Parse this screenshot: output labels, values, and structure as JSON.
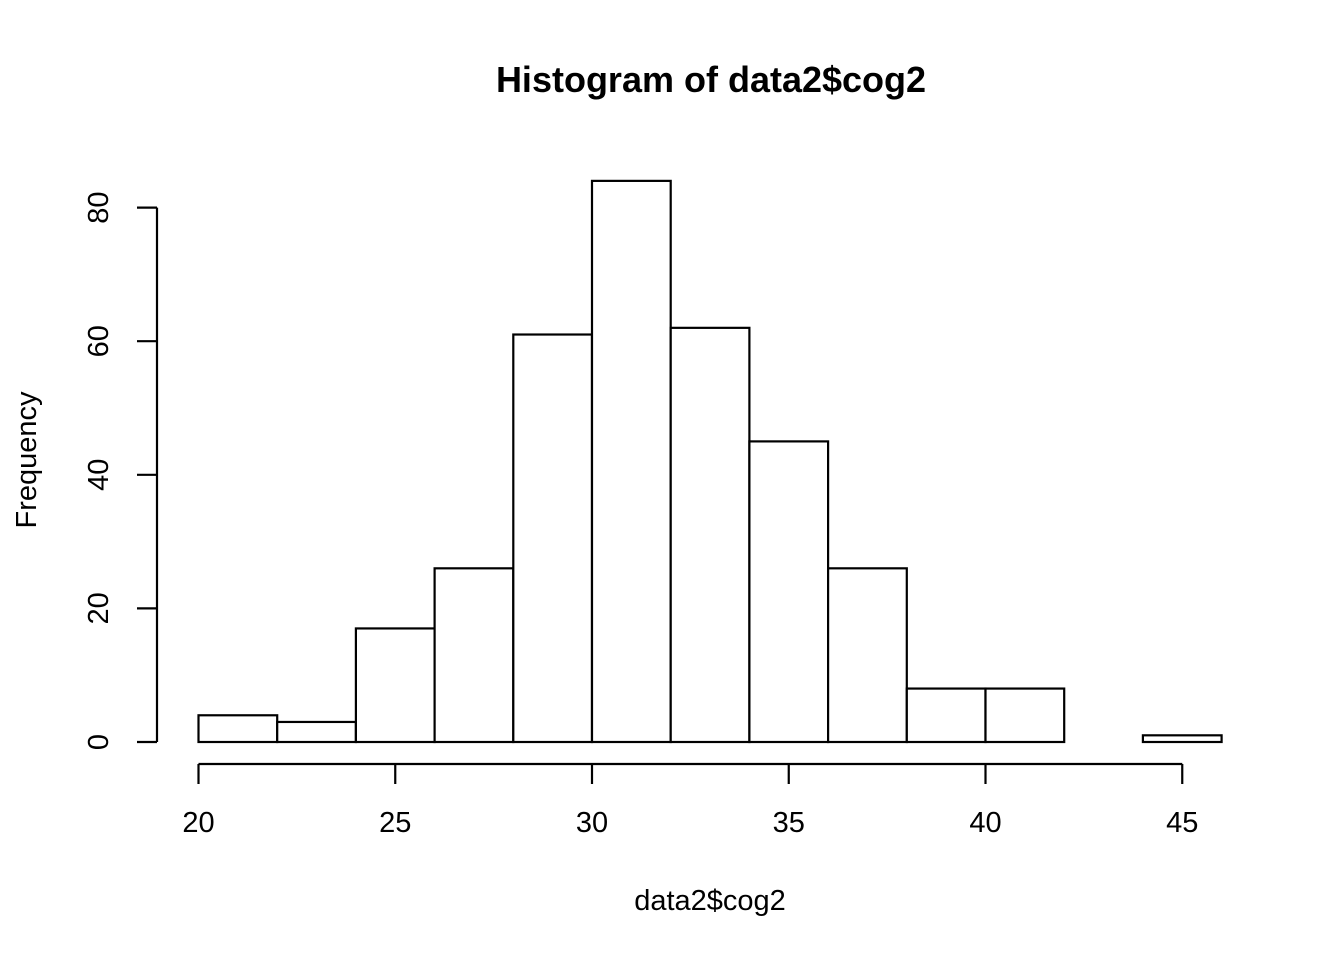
{
  "chart_data": {
    "type": "bar",
    "subtype": "histogram",
    "title": "Histogram of data2$cog2",
    "xlabel": "data2$cog2",
    "ylabel": "Frequency",
    "bins": [
      {
        "start": 20,
        "end": 22,
        "count": 4
      },
      {
        "start": 22,
        "end": 24,
        "count": 3
      },
      {
        "start": 24,
        "end": 26,
        "count": 17
      },
      {
        "start": 26,
        "end": 28,
        "count": 26
      },
      {
        "start": 28,
        "end": 30,
        "count": 61
      },
      {
        "start": 30,
        "end": 32,
        "count": 84
      },
      {
        "start": 32,
        "end": 34,
        "count": 62
      },
      {
        "start": 34,
        "end": 36,
        "count": 45
      },
      {
        "start": 36,
        "end": 38,
        "count": 26
      },
      {
        "start": 38,
        "end": 40,
        "count": 8
      },
      {
        "start": 40,
        "end": 42,
        "count": 8
      },
      {
        "start": 42,
        "end": 44,
        "count": 0
      },
      {
        "start": 44,
        "end": 46,
        "count": 1
      }
    ],
    "xlim": [
      20,
      46
    ],
    "ylim": [
      0,
      84
    ],
    "x_ticks": [
      "20",
      "25",
      "30",
      "35",
      "40",
      "45"
    ],
    "y_ticks": [
      "0",
      "20",
      "40",
      "60",
      "80"
    ],
    "grid": false,
    "legend": false
  }
}
